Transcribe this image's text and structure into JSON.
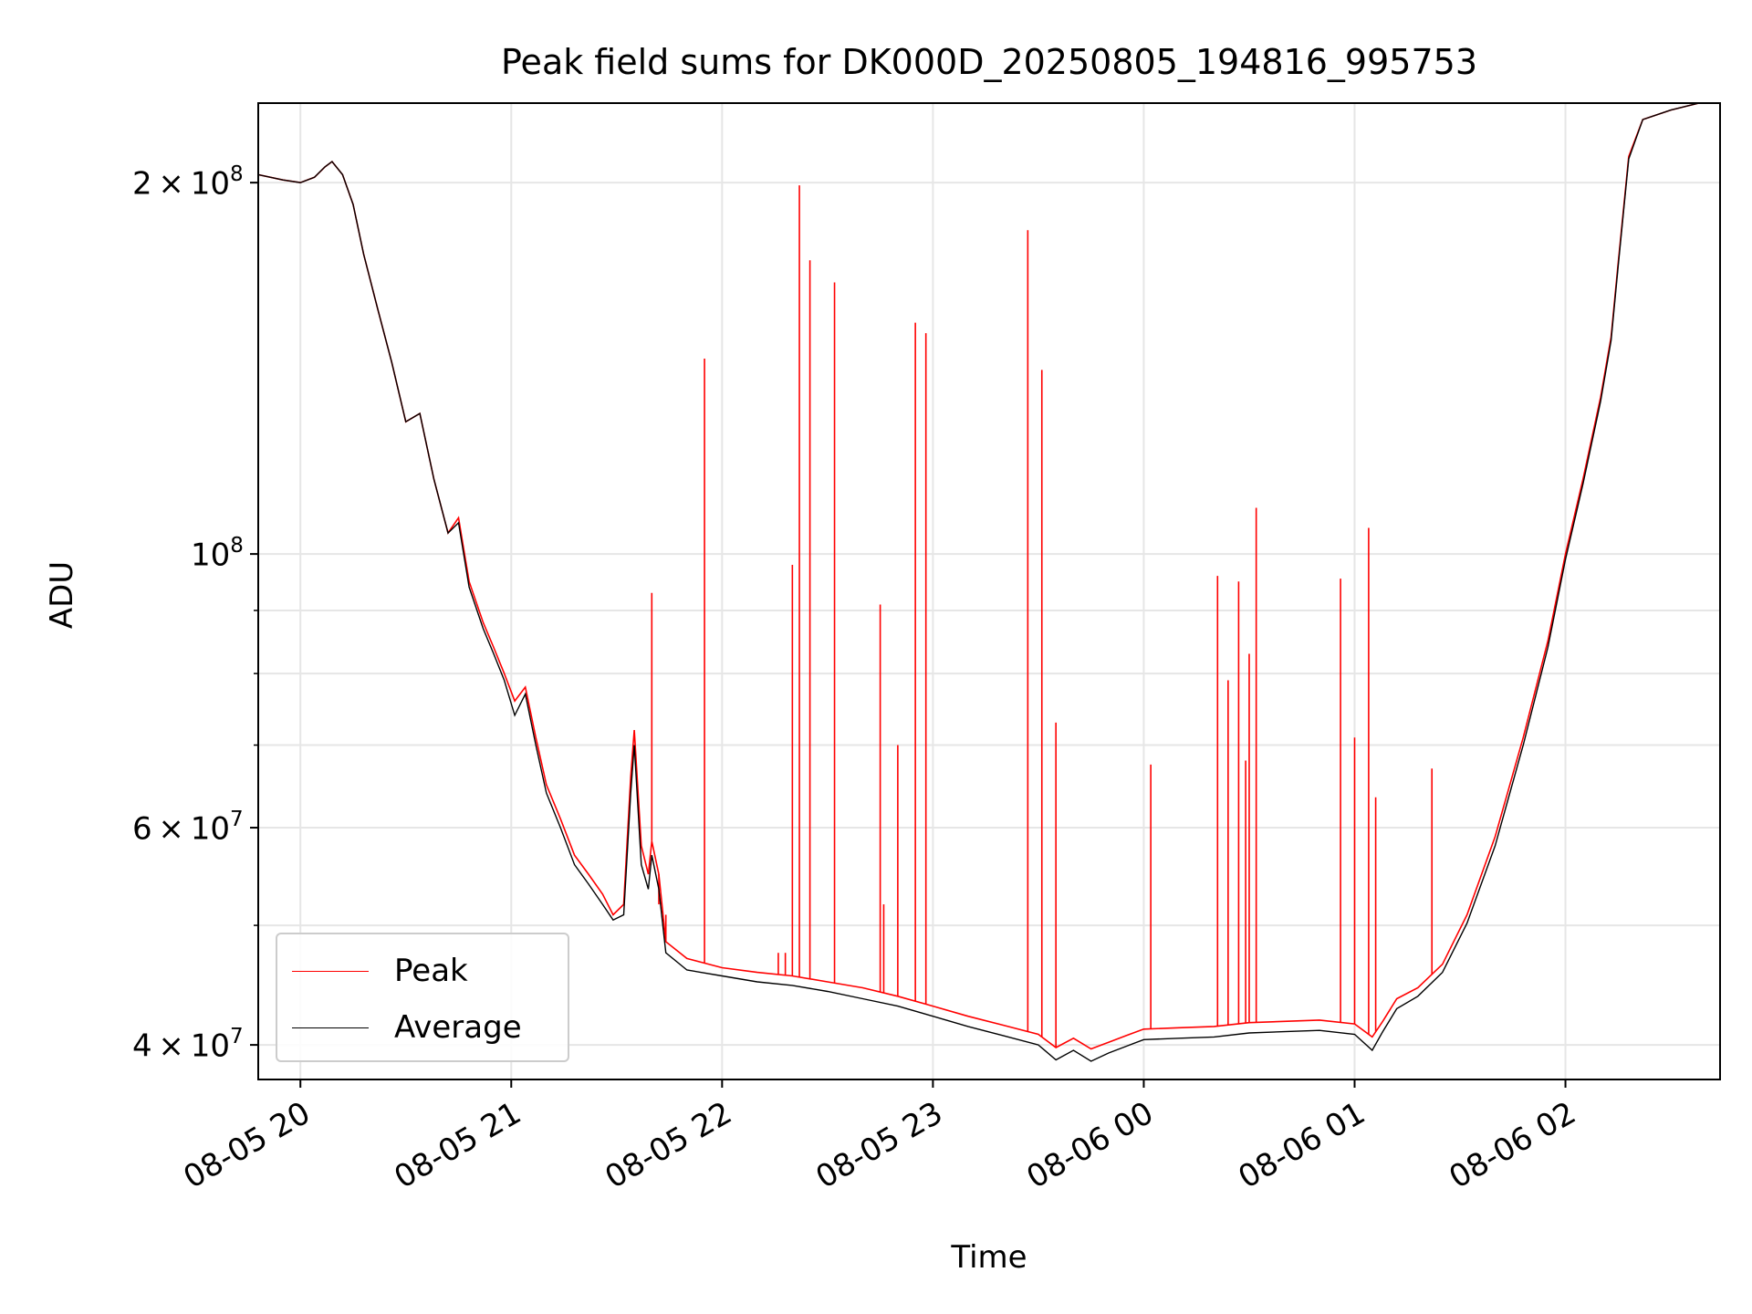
{
  "chart_data": {
    "type": "line",
    "title": "Peak field sums for DK000D_20250805_194816_995753",
    "xlabel": "Time",
    "ylabel": "ADU",
    "y_scale": "log",
    "ylim": [
      37500000,
      232000000
    ],
    "xlim": [
      "2025-08-05 19:48",
      "2025-08-06 02:44"
    ],
    "grid": true,
    "legend_position": "lower-left",
    "x_ticks": [
      {
        "t": "2025-08-05 20:00",
        "label": "08-05 20"
      },
      {
        "t": "2025-08-05 21:00",
        "label": "08-05 21"
      },
      {
        "t": "2025-08-05 22:00",
        "label": "08-05 22"
      },
      {
        "t": "2025-08-05 23:00",
        "label": "08-05 23"
      },
      {
        "t": "2025-08-06 00:00",
        "label": "08-06 00"
      },
      {
        "t": "2025-08-06 01:00",
        "label": "08-06 01"
      },
      {
        "t": "2025-08-06 02:00",
        "label": "08-06 02"
      }
    ],
    "y_ticks": [
      {
        "value": 40000000,
        "mantissa": "4",
        "exponent": "7"
      },
      {
        "value": 60000000,
        "mantissa": "6",
        "exponent": "7"
      },
      {
        "value": 100000000,
        "mantissa": "",
        "exponent": "8"
      },
      {
        "value": 200000000,
        "mantissa": "2",
        "exponent": "8"
      }
    ],
    "y_minor_ticks": [
      50000000,
      70000000,
      80000000,
      90000000
    ],
    "series": [
      {
        "name": "Peak",
        "color": "#ff0000",
        "points": [
          [
            "2025-08-05 19:48",
            203000000
          ],
          [
            "2025-08-05 19:55",
            201000000
          ],
          [
            "2025-08-05 20:00",
            200000000
          ],
          [
            "2025-08-05 20:04",
            202000000
          ],
          [
            "2025-08-05 20:07",
            206000000
          ],
          [
            "2025-08-05 20:09",
            208000000
          ],
          [
            "2025-08-05 20:12",
            203000000
          ],
          [
            "2025-08-05 20:15",
            192000000
          ],
          [
            "2025-08-05 20:18",
            175000000
          ],
          [
            "2025-08-05 20:22",
            158000000
          ],
          [
            "2025-08-05 20:26",
            143000000
          ],
          [
            "2025-08-05 20:30",
            128000000
          ],
          [
            "2025-08-05 20:34",
            130000000
          ],
          [
            "2025-08-05 20:38",
            115000000
          ],
          [
            "2025-08-05 20:42",
            104000000
          ],
          [
            "2025-08-05 20:45",
            107000000
          ],
          [
            "2025-08-05 20:48",
            95000000
          ],
          [
            "2025-08-05 20:52",
            88000000
          ],
          [
            "2025-08-05 20:55",
            84000000
          ],
          [
            "2025-08-05 20:58",
            80000000
          ],
          [
            "2025-08-05 21:01",
            76000000
          ],
          [
            "2025-08-05 21:04",
            78000000
          ],
          [
            "2025-08-05 21:07",
            71000000
          ],
          [
            "2025-08-05 21:10",
            65000000
          ],
          [
            "2025-08-05 21:14",
            61000000
          ],
          [
            "2025-08-05 21:18",
            57000000
          ],
          [
            "2025-08-05 21:22",
            55000000
          ],
          [
            "2025-08-05 21:26",
            53000000
          ],
          [
            "2025-08-05 21:29",
            51000000
          ],
          [
            "2025-08-05 21:32",
            52000000
          ],
          [
            "2025-08-05 21:34",
            66000000
          ],
          [
            "2025-08-05 21:35",
            72000000
          ],
          [
            "2025-08-05 21:37",
            58000000
          ],
          [
            "2025-08-05 21:39",
            55000000
          ],
          [
            "2025-08-05 21:40",
            58500000
          ],
          [
            "2025-08-05 21:42",
            55000000
          ],
          [
            "2025-08-05 21:44",
            48500000
          ],
          [
            "2025-08-05 21:50",
            47000000
          ],
          [
            "2025-08-05 22:00",
            46200000
          ],
          [
            "2025-08-05 22:10",
            45800000
          ],
          [
            "2025-08-05 22:20",
            45500000
          ],
          [
            "2025-08-05 22:30",
            45000000
          ],
          [
            "2025-08-05 22:40",
            44500000
          ],
          [
            "2025-08-05 22:50",
            43800000
          ],
          [
            "2025-08-05 23:00",
            43000000
          ],
          [
            "2025-08-05 23:10",
            42200000
          ],
          [
            "2025-08-05 23:20",
            41500000
          ],
          [
            "2025-08-05 23:30",
            40800000
          ],
          [
            "2025-08-05 23:35",
            39800000
          ],
          [
            "2025-08-05 23:40",
            40500000
          ],
          [
            "2025-08-05 23:45",
            39700000
          ],
          [
            "2025-08-05 23:50",
            40200000
          ],
          [
            "2025-08-05 23:55",
            40700000
          ],
          [
            "2025-08-06 00:00",
            41200000
          ],
          [
            "2025-08-06 00:10",
            41300000
          ],
          [
            "2025-08-06 00:20",
            41400000
          ],
          [
            "2025-08-06 00:30",
            41700000
          ],
          [
            "2025-08-06 00:40",
            41800000
          ],
          [
            "2025-08-06 00:50",
            41900000
          ],
          [
            "2025-08-06 01:00",
            41600000
          ],
          [
            "2025-08-06 01:05",
            40600000
          ],
          [
            "2025-08-06 01:08",
            41800000
          ],
          [
            "2025-08-06 01:12",
            43600000
          ],
          [
            "2025-08-06 01:18",
            44500000
          ],
          [
            "2025-08-06 01:25",
            46500000
          ],
          [
            "2025-08-06 01:32",
            51000000
          ],
          [
            "2025-08-06 01:40",
            59000000
          ],
          [
            "2025-08-06 01:48",
            71000000
          ],
          [
            "2025-08-06 01:55",
            85000000
          ],
          [
            "2025-08-06 02:00",
            100000000
          ],
          [
            "2025-08-06 02:05",
            115000000
          ],
          [
            "2025-08-06 02:10",
            134000000
          ],
          [
            "2025-08-06 02:13",
            150000000
          ],
          [
            "2025-08-06 02:15",
            172000000
          ],
          [
            "2025-08-06 02:18",
            210000000
          ],
          [
            "2025-08-06 02:22",
            225000000
          ],
          [
            "2025-08-06 02:30",
            229000000
          ],
          [
            "2025-08-06 02:38",
            232000000
          ],
          [
            "2025-08-06 02:44",
            232000000
          ]
        ],
        "spikes": [
          [
            "2025-08-05 21:42",
            52000000
          ],
          [
            "2025-08-05 21:44",
            51000000
          ],
          [
            "2025-08-05 21:40",
            93000000
          ],
          [
            "2025-08-05 21:55",
            144000000
          ],
          [
            "2025-08-05 22:16",
            47500000
          ],
          [
            "2025-08-05 22:18",
            47500000
          ],
          [
            "2025-08-05 22:20",
            98000000
          ],
          [
            "2025-08-05 22:22",
            199000000
          ],
          [
            "2025-08-05 22:25",
            173000000
          ],
          [
            "2025-08-05 22:32",
            166000000
          ],
          [
            "2025-08-05 22:45",
            91000000
          ],
          [
            "2025-08-05 22:46",
            52000000
          ],
          [
            "2025-08-05 22:50",
            70000000
          ],
          [
            "2025-08-05 22:55",
            154000000
          ],
          [
            "2025-08-05 22:58",
            151000000
          ],
          [
            "2025-08-05 23:27",
            183000000
          ],
          [
            "2025-08-05 23:31",
            141000000
          ],
          [
            "2025-08-05 23:35",
            73000000
          ],
          [
            "2025-08-06 00:02",
            67500000
          ],
          [
            "2025-08-06 00:21",
            96000000
          ],
          [
            "2025-08-06 00:24",
            79000000
          ],
          [
            "2025-08-06 00:27",
            95000000
          ],
          [
            "2025-08-06 00:29",
            68000000
          ],
          [
            "2025-08-06 00:30",
            83000000
          ],
          [
            "2025-08-06 00:32",
            109000000
          ],
          [
            "2025-08-06 00:56",
            95500000
          ],
          [
            "2025-08-06 01:00",
            71000000
          ],
          [
            "2025-08-06 01:04",
            105000000
          ],
          [
            "2025-08-06 01:06",
            63500000
          ],
          [
            "2025-08-06 01:22",
            67000000
          ]
        ]
      },
      {
        "name": "Average",
        "color": "#000000",
        "points": [
          [
            "2025-08-05 19:48",
            203000000
          ],
          [
            "2025-08-05 19:55",
            201000000
          ],
          [
            "2025-08-05 20:00",
            200000000
          ],
          [
            "2025-08-05 20:04",
            202000000
          ],
          [
            "2025-08-05 20:07",
            206000000
          ],
          [
            "2025-08-05 20:09",
            208000000
          ],
          [
            "2025-08-05 20:12",
            203000000
          ],
          [
            "2025-08-05 20:15",
            192000000
          ],
          [
            "2025-08-05 20:18",
            175000000
          ],
          [
            "2025-08-05 20:22",
            158000000
          ],
          [
            "2025-08-05 20:26",
            143000000
          ],
          [
            "2025-08-05 20:30",
            128000000
          ],
          [
            "2025-08-05 20:34",
            130000000
          ],
          [
            "2025-08-05 20:38",
            115000000
          ],
          [
            "2025-08-05 20:42",
            104000000
          ],
          [
            "2025-08-05 20:45",
            106000000
          ],
          [
            "2025-08-05 20:48",
            94000000
          ],
          [
            "2025-08-05 20:52",
            87000000
          ],
          [
            "2025-08-05 20:55",
            83000000
          ],
          [
            "2025-08-05 20:58",
            79000000
          ],
          [
            "2025-08-05 21:01",
            74000000
          ],
          [
            "2025-08-05 21:04",
            77000000
          ],
          [
            "2025-08-05 21:07",
            70000000
          ],
          [
            "2025-08-05 21:10",
            64000000
          ],
          [
            "2025-08-05 21:14",
            60000000
          ],
          [
            "2025-08-05 21:18",
            56000000
          ],
          [
            "2025-08-05 21:22",
            54000000
          ],
          [
            "2025-08-05 21:26",
            52000000
          ],
          [
            "2025-08-05 21:29",
            50500000
          ],
          [
            "2025-08-05 21:32",
            51000000
          ],
          [
            "2025-08-05 21:34",
            64000000
          ],
          [
            "2025-08-05 21:35",
            70000000
          ],
          [
            "2025-08-05 21:37",
            56000000
          ],
          [
            "2025-08-05 21:39",
            53500000
          ],
          [
            "2025-08-05 21:40",
            57000000
          ],
          [
            "2025-08-05 21:42",
            53500000
          ],
          [
            "2025-08-05 21:44",
            47500000
          ],
          [
            "2025-08-05 21:50",
            46000000
          ],
          [
            "2025-08-05 22:00",
            45500000
          ],
          [
            "2025-08-05 22:10",
            45000000
          ],
          [
            "2025-08-05 22:20",
            44700000
          ],
          [
            "2025-08-05 22:30",
            44200000
          ],
          [
            "2025-08-05 22:40",
            43600000
          ],
          [
            "2025-08-05 22:50",
            43000000
          ],
          [
            "2025-08-05 23:00",
            42200000
          ],
          [
            "2025-08-05 23:10",
            41400000
          ],
          [
            "2025-08-05 23:20",
            40700000
          ],
          [
            "2025-08-05 23:30",
            40000000
          ],
          [
            "2025-08-05 23:35",
            38900000
          ],
          [
            "2025-08-05 23:40",
            39600000
          ],
          [
            "2025-08-05 23:45",
            38800000
          ],
          [
            "2025-08-05 23:50",
            39400000
          ],
          [
            "2025-08-05 23:55",
            39900000
          ],
          [
            "2025-08-06 00:00",
            40400000
          ],
          [
            "2025-08-06 00:10",
            40500000
          ],
          [
            "2025-08-06 00:20",
            40600000
          ],
          [
            "2025-08-06 00:30",
            40900000
          ],
          [
            "2025-08-06 00:40",
            41000000
          ],
          [
            "2025-08-06 00:50",
            41100000
          ],
          [
            "2025-08-06 01:00",
            40800000
          ],
          [
            "2025-08-06 01:05",
            39600000
          ],
          [
            "2025-08-06 01:08",
            41000000
          ],
          [
            "2025-08-06 01:12",
            42800000
          ],
          [
            "2025-08-06 01:18",
            43800000
          ],
          [
            "2025-08-06 01:25",
            45800000
          ],
          [
            "2025-08-06 01:32",
            50200000
          ],
          [
            "2025-08-06 01:40",
            58000000
          ],
          [
            "2025-08-06 01:48",
            70000000
          ],
          [
            "2025-08-06 01:55",
            84000000
          ],
          [
            "2025-08-06 02:00",
            99000000
          ],
          [
            "2025-08-06 02:05",
            114000000
          ],
          [
            "2025-08-06 02:10",
            133000000
          ],
          [
            "2025-08-06 02:13",
            149000000
          ],
          [
            "2025-08-06 02:15",
            171000000
          ],
          [
            "2025-08-06 02:18",
            209000000
          ],
          [
            "2025-08-06 02:22",
            225000000
          ],
          [
            "2025-08-06 02:30",
            229000000
          ],
          [
            "2025-08-06 02:38",
            232000000
          ],
          [
            "2025-08-06 02:44",
            232000000
          ]
        ]
      }
    ]
  }
}
